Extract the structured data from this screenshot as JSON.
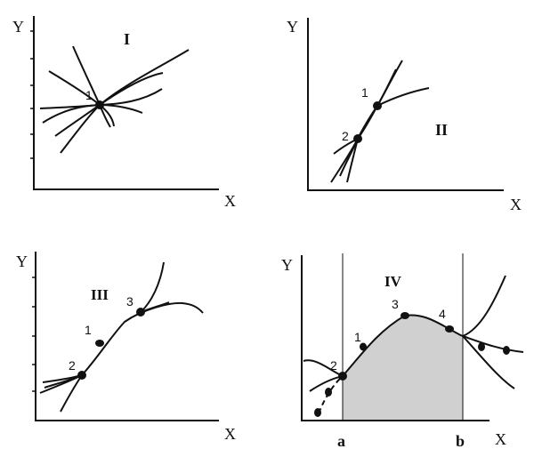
{
  "panels": {
    "p1": {
      "roman": "I",
      "y_label": "Y",
      "x_label": "X",
      "points": [
        "1"
      ]
    },
    "p2": {
      "roman": "II",
      "y_label": "Y",
      "x_label": "X",
      "points": [
        "1",
        "2"
      ]
    },
    "p3": {
      "roman": "III",
      "y_label": "Y",
      "x_label": "X",
      "points": [
        "1",
        "2",
        "3"
      ]
    },
    "p4": {
      "roman": "IV",
      "y_label": "Y",
      "x_label": "X",
      "points": [
        "1",
        "2",
        "3",
        "4"
      ],
      "bound_a": "a",
      "bound_b": "b",
      "fill_color": "#d0d0d0"
    }
  }
}
